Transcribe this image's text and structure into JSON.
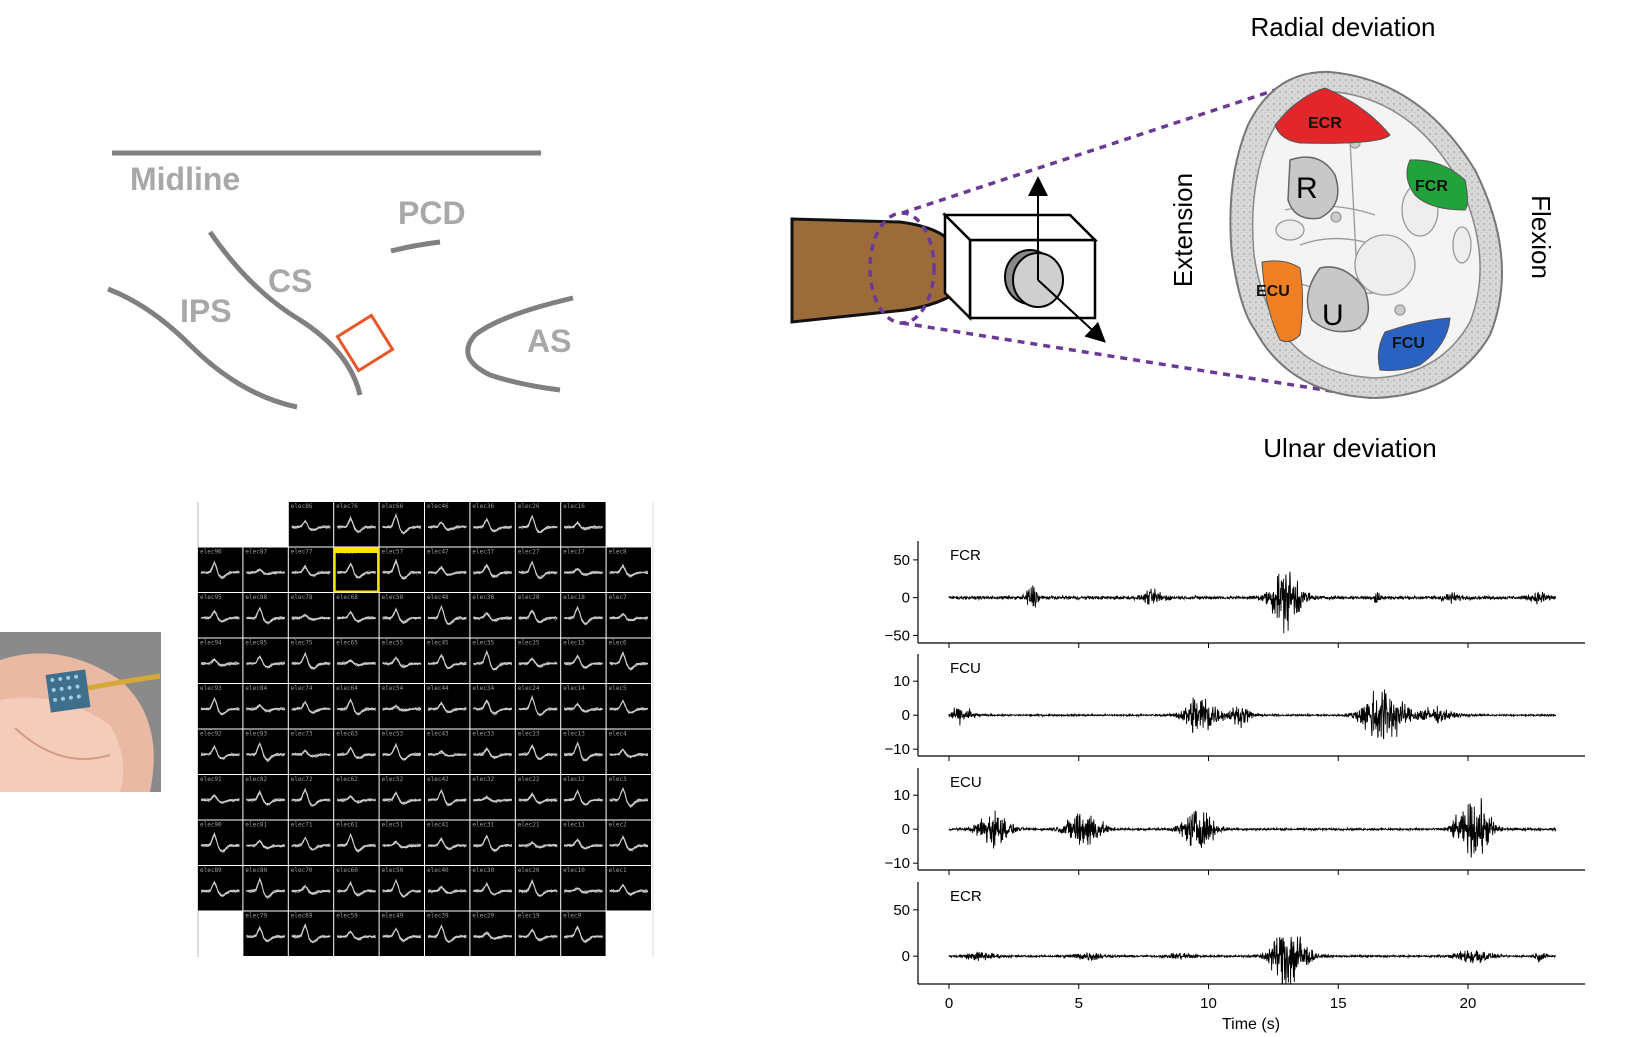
{
  "brain_map": {
    "labels": {
      "midline": "Midline",
      "pcd": "PCD",
      "cs": "CS",
      "ips": "IPS",
      "as": "AS"
    },
    "line_color": "#808080",
    "text_color": "#a8a8a8",
    "array_color": "#e8572a"
  },
  "wrist_diagram": {
    "directions": {
      "top": "Radial deviation",
      "bottom": "Ulnar deviation",
      "left": "Extension",
      "right": "Flexion"
    },
    "bones": {
      "radius": "R",
      "ulna": "U"
    },
    "muscles": [
      {
        "name": "ECR",
        "color": "#e3262a"
      },
      {
        "name": "FCR",
        "color": "#22a23a"
      },
      {
        "name": "ECU",
        "color": "#f07f23"
      },
      {
        "name": "FCU",
        "color": "#2b62c2"
      }
    ],
    "arm_color": "#9c6b3a",
    "dash_color": "#6a3a96"
  },
  "array_photo": {
    "description_icon": "utah-array-on-fingertip"
  },
  "spike_grid": {
    "highlight_color": "#ffe600",
    "highlighted_label": "elec67",
    "rows": [
      [
        "",
        "elec86",
        "elec76",
        "elec66",
        "elec46",
        "elec36",
        "elec26",
        "elec16",
        ""
      ],
      [
        "elec96",
        "elec87",
        "elec77",
        "elec67",
        "elec57",
        "elec47",
        "elec37",
        "elec27",
        "elec17",
        "elec8"
      ],
      [
        "elec95",
        "elec88",
        "elec78",
        "elec68",
        "elec58",
        "elec48",
        "elec38",
        "elec28",
        "elec18",
        "elec7"
      ],
      [
        "elec94",
        "elec85",
        "elec75",
        "elec65",
        "elec55",
        "elec45",
        "elec35",
        "elec25",
        "elec15",
        "elec6"
      ],
      [
        "elec93",
        "elec84",
        "elec74",
        "elec64",
        "elec54",
        "elec44",
        "elec34",
        "elec24",
        "elec14",
        "elec5"
      ],
      [
        "elec92",
        "elec83",
        "elec73",
        "elec63",
        "elec53",
        "elec43",
        "elec33",
        "elec23",
        "elec13",
        "elec4"
      ],
      [
        "elec91",
        "elec82",
        "elec72",
        "elec62",
        "elec52",
        "elec42",
        "elec32",
        "elec22",
        "elec12",
        "elec3"
      ],
      [
        "elec90",
        "elec81",
        "elec71",
        "elec61",
        "elec51",
        "elec41",
        "elec31",
        "elec21",
        "elec11",
        "elec2"
      ],
      [
        "elec89",
        "elec80",
        "elec70",
        "elec60",
        "elec50",
        "elec40",
        "elec30",
        "elec20",
        "elec10",
        "elec1"
      ],
      [
        "",
        "elec79",
        "elec69",
        "elec59",
        "elec49",
        "elec39",
        "elec29",
        "elec19",
        "elec9",
        ""
      ]
    ]
  },
  "chart_data": {
    "type": "line",
    "xlabel": "Time (s)",
    "xlim": [
      0,
      24
    ],
    "xticks": [
      0,
      5,
      10,
      15,
      20
    ],
    "trace_color": "#000000",
    "series": [
      {
        "name": "FCR",
        "ylim": [
          -60,
          75
        ],
        "yticks": [
          50,
          0,
          -50
        ],
        "bursts": [
          [
            3.2,
            0.5,
            30
          ],
          [
            7.9,
            0.8,
            18
          ],
          [
            13.0,
            1.2,
            75
          ],
          [
            16.5,
            0.2,
            25
          ],
          [
            19.3,
            0.8,
            10
          ],
          [
            22.8,
            0.8,
            12
          ]
        ],
        "baseline": 4
      },
      {
        "name": "FCU",
        "ylim": [
          -12,
          18
        ],
        "yticks": [
          10,
          0,
          -10
        ],
        "bursts": [
          [
            0.5,
            0.9,
            4
          ],
          [
            9.7,
            1.2,
            13
          ],
          [
            11.2,
            0.9,
            5
          ],
          [
            16.7,
            1.5,
            17
          ],
          [
            18.6,
            1.6,
            4
          ]
        ],
        "baseline": 0.5
      },
      {
        "name": "ECU",
        "ylim": [
          -12,
          18
        ],
        "yticks": [
          10,
          0,
          -10
        ],
        "bursts": [
          [
            1.7,
            1.2,
            10
          ],
          [
            5.2,
            1.3,
            11
          ],
          [
            9.6,
            1.2,
            11
          ],
          [
            19.5,
            0.4,
            3
          ],
          [
            20.3,
            1.2,
            16
          ]
        ],
        "baseline": 0.6
      },
      {
        "name": "ECR",
        "ylim": [
          -30,
          80
        ],
        "yticks": [
          50,
          0
        ],
        "bursts": [
          [
            1.2,
            1.2,
            8
          ],
          [
            5.4,
            1.2,
            8
          ],
          [
            9.0,
            1.0,
            6
          ],
          [
            13.1,
            1.3,
            70
          ],
          [
            20.2,
            1.2,
            16
          ],
          [
            22.8,
            0.4,
            10
          ]
        ],
        "baseline": 2
      }
    ],
    "panels_ylabel": ""
  }
}
